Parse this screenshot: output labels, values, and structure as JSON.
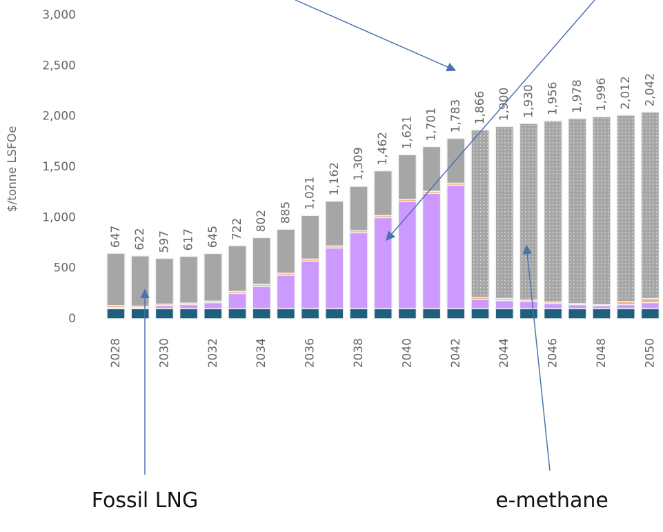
{
  "chart_data": {
    "type": "stacked-bar",
    "y_label": "$/tonne LSFOe",
    "categories": [
      "2028",
      null,
      "2030",
      null,
      "2032",
      null,
      "2034",
      null,
      "2036",
      null,
      "2038",
      null,
      "2040",
      null,
      "2042",
      null,
      "2044",
      null,
      "2046",
      null,
      "2048",
      null,
      "2050"
    ],
    "series": [
      {
        "color": "#1f5f7e",
        "values": [
          100,
          100,
          100,
          100,
          100,
          100,
          100,
          100,
          100,
          100,
          100,
          100,
          100,
          100,
          100,
          100,
          100,
          100,
          100,
          100,
          100,
          100,
          100
        ]
      },
      {
        "color": "#cc99ff",
        "values": [
          10,
          10,
          30,
          40,
          60,
          150,
          220,
          330,
          470,
          600,
          750,
          900,
          1060,
          1140,
          1220,
          90,
          80,
          70,
          50,
          40,
          30,
          40,
          60
        ]
      },
      {
        "color": "#f4b183",
        "values": [
          20,
          15,
          15,
          15,
          15,
          20,
          20,
          20,
          20,
          20,
          20,
          20,
          20,
          20,
          20,
          20,
          20,
          15,
          15,
          10,
          10,
          30,
          40
        ]
      },
      {
        "color": "#a6a6a6",
        "values": [
          517,
          497,
          452,
          462,
          470,
          452,
          462,
          435,
          431,
          442,
          439,
          442,
          441,
          441,
          443,
          null,
          null,
          null,
          null,
          null,
          null,
          null,
          null
        ]
      },
      {
        "color": "#a6a6a6",
        "pattern": "dotted",
        "values": [
          null,
          null,
          null,
          null,
          null,
          null,
          null,
          null,
          null,
          null,
          null,
          null,
          null,
          null,
          null,
          1656,
          1700,
          1745,
          1791,
          1828,
          1856,
          1842,
          1842
        ]
      }
    ],
    "totals": [
      647,
      622,
      597,
      617,
      645,
      722,
      802,
      885,
      1021,
      1162,
      1309,
      1462,
      1621,
      1701,
      1783,
      1866,
      1900,
      1930,
      1956,
      1978,
      1996,
      2012,
      2042
    ],
    "total_labels": [
      "647",
      "622",
      "597",
      "617",
      "645",
      "722",
      "802",
      "885",
      "1,021",
      "1,162",
      "1,309",
      "1,462",
      "1,621",
      "1,701",
      "1,783",
      "1,866",
      "1,900",
      "1,930",
      "1,956",
      "1,978",
      "1,996",
      "2,012",
      "2,042"
    ],
    "ylim": [
      0,
      3000
    ],
    "yticks": [
      0,
      500,
      {
        "value": 1000,
        "label": "1,000"
      },
      {
        "value": 1500,
        "label": "1,500"
      },
      {
        "value": 2000,
        "label": "2,000"
      },
      {
        "value": 2500,
        "label": "2,500"
      },
      {
        "value": 3000,
        "label": "3,000"
      }
    ],
    "annotations": [
      "Fossil LNG",
      "e-methane"
    ]
  }
}
